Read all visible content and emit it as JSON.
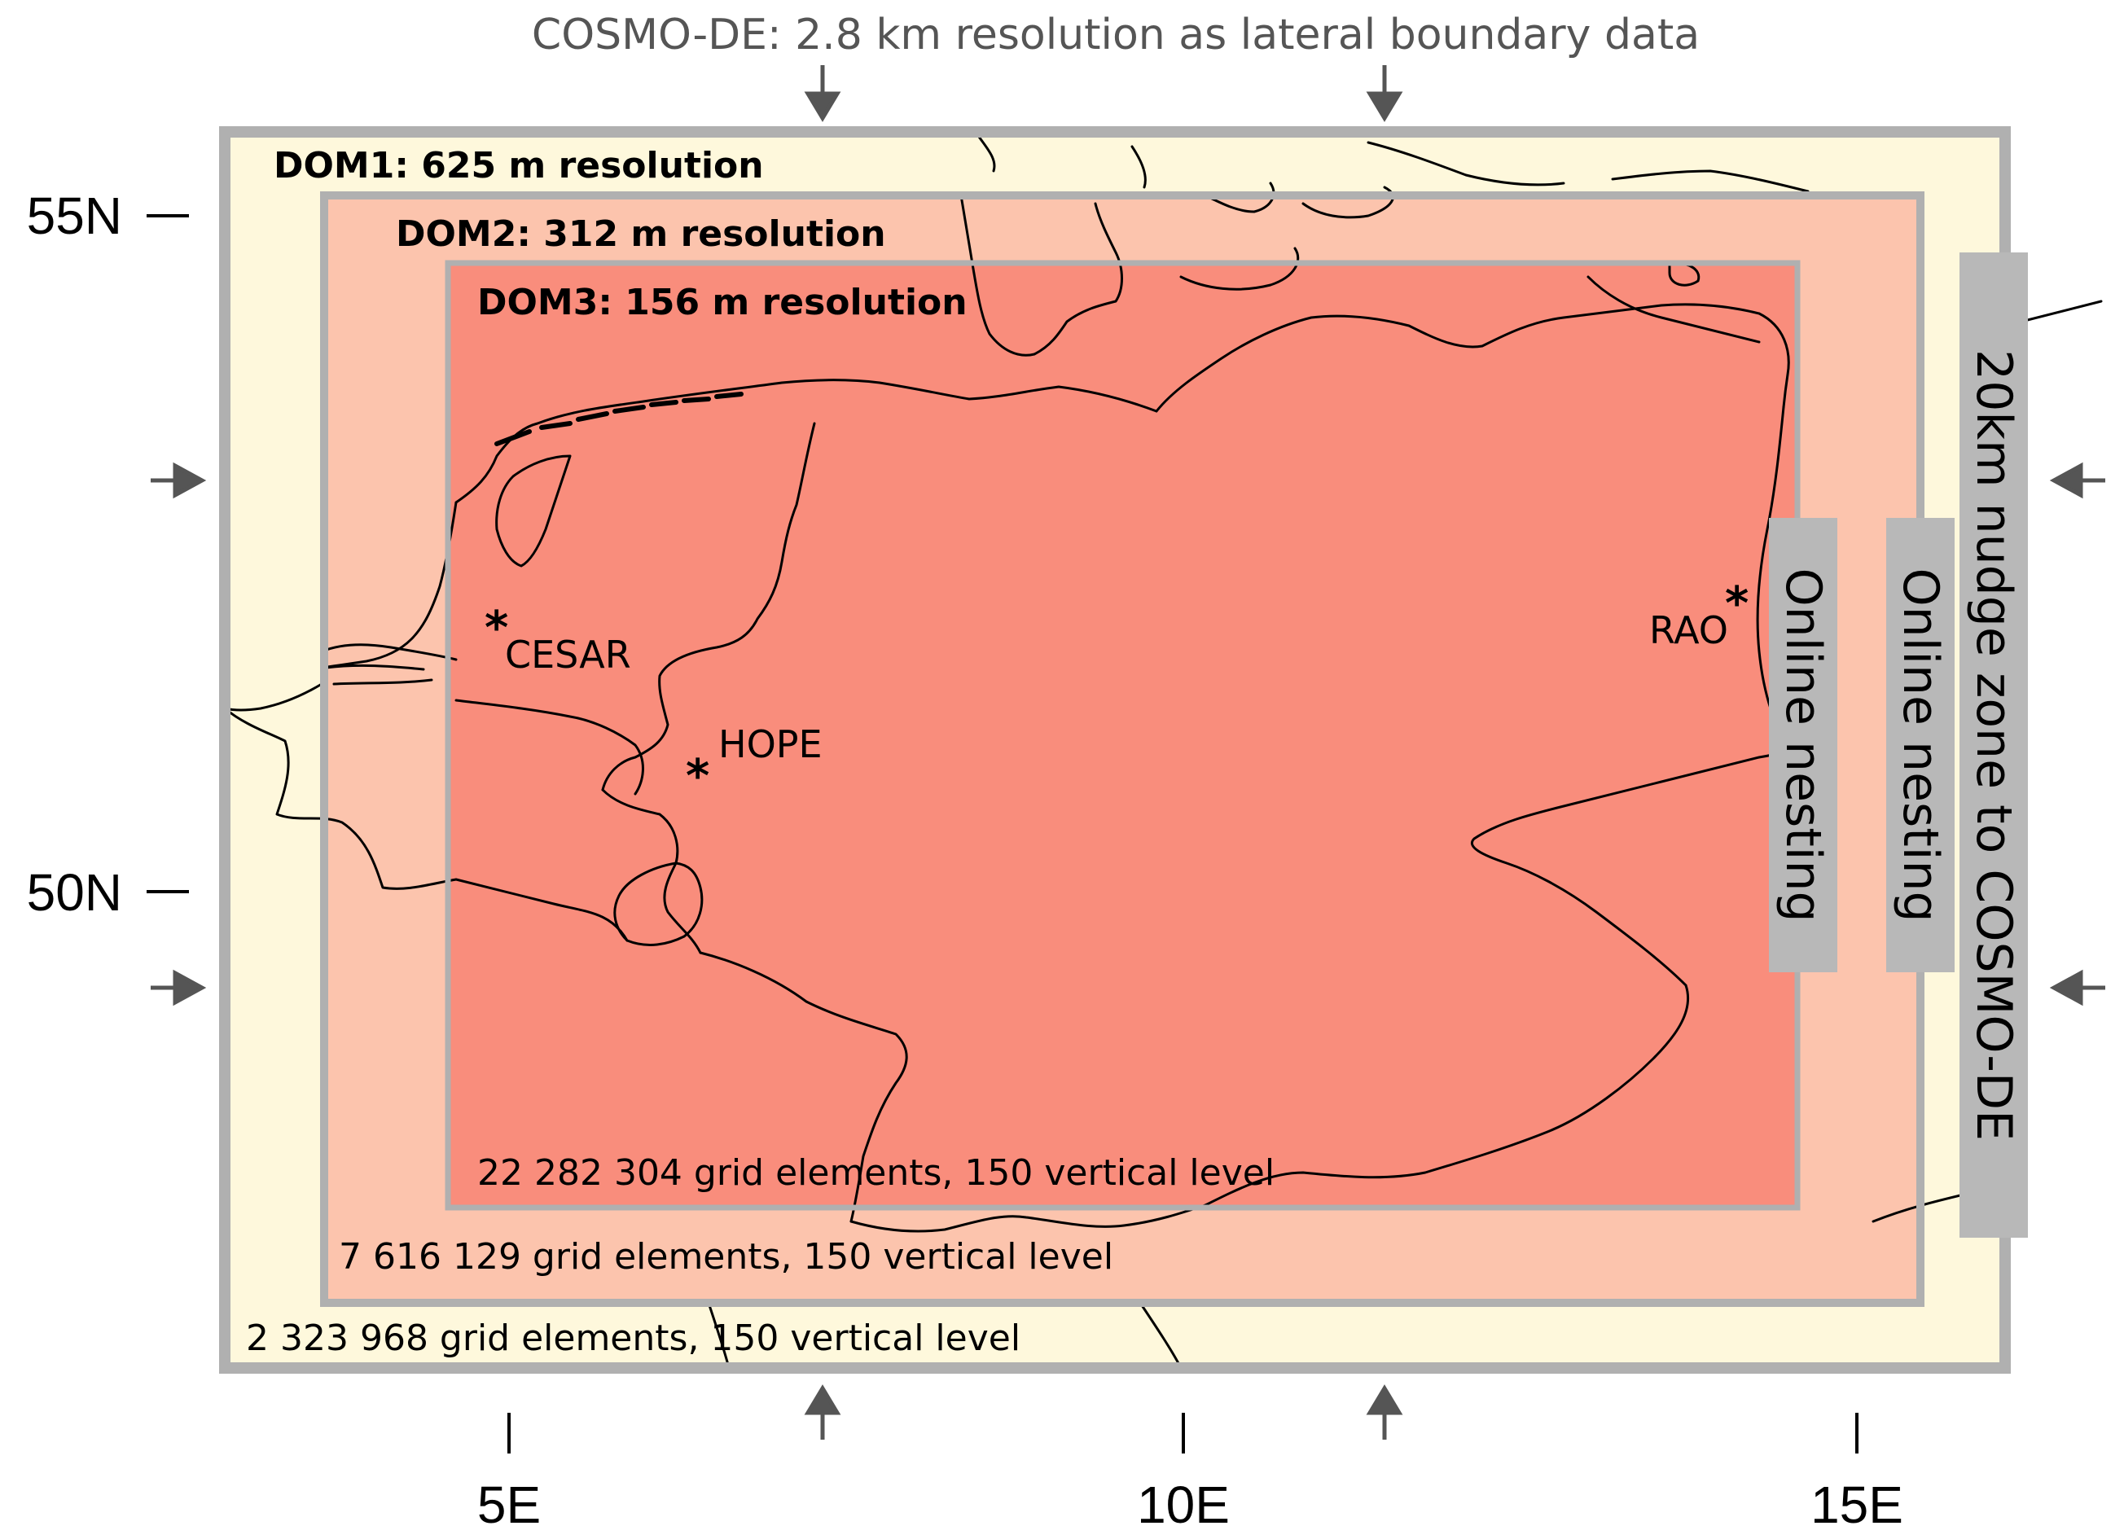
{
  "top_annotation": "COSMO-DE: 2.8 km resolution as lateral boundary data",
  "latitude_ticks": [
    "55N",
    "50N"
  ],
  "longitude_ticks": [
    "5E",
    "10E",
    "15E"
  ],
  "domains": [
    {
      "title": "DOM1: 625 m resolution",
      "grid_info": "2 323 968 grid elements, 150 vertical level",
      "fill": "#fef8dc"
    },
    {
      "title": "DOM2: 312 m resolution",
      "grid_info": "7 616 129 grid elements, 150 vertical level",
      "fill": "#fcc4ad"
    },
    {
      "title": "DOM3: 156 m resolution",
      "grid_info": "22 282 304 grid elements, 150 vertical level",
      "fill": "#f98d7c"
    }
  ],
  "sites": [
    {
      "name": "CESAR"
    },
    {
      "name": "HOPE"
    },
    {
      "name": "RAO"
    }
  ],
  "side_labels": {
    "nesting_inner": "Online nesting",
    "nesting_outer": "Online nesting",
    "nudge_zone": "20km nudge zone to COSMO-DE"
  },
  "colors": {
    "frame": "#b0b0b0",
    "label_box": "#b8b8b8",
    "arrow": "#555555",
    "border_lines": "#000000"
  }
}
